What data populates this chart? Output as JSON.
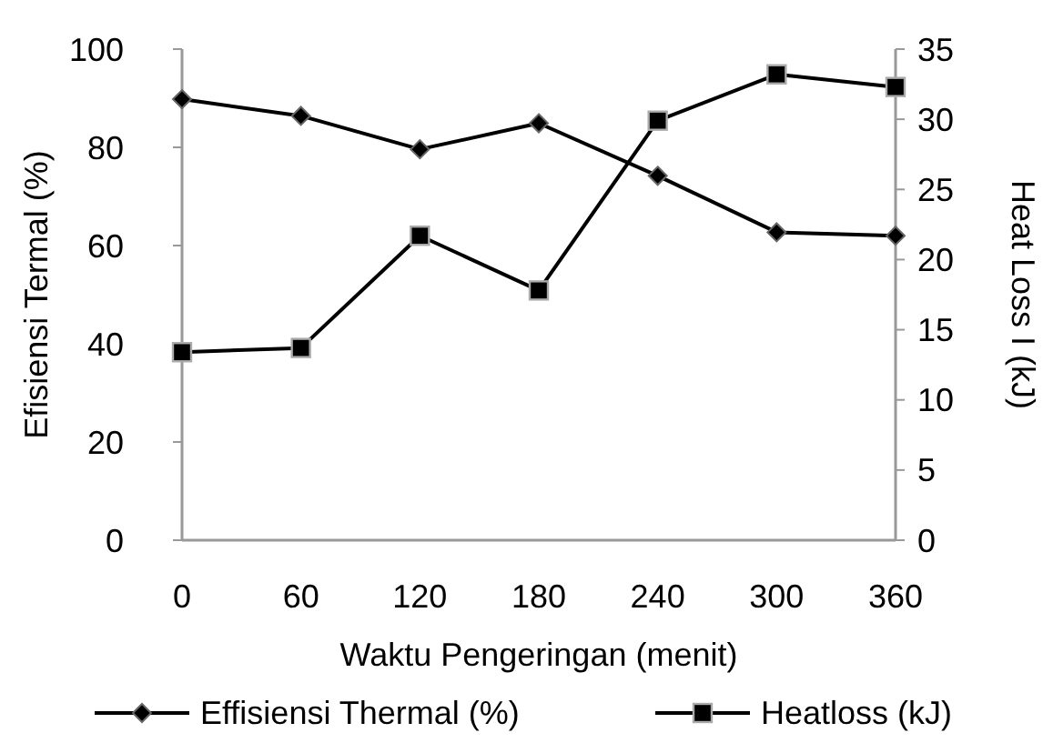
{
  "chart_data": {
    "type": "line",
    "xlabel": "Waktu Pengeringan (menit)",
    "ylabel": "Efisiensi Termal (%)",
    "y2label": "Heat Loss I (kJ)",
    "categories": [
      "0",
      "60",
      "120",
      "180",
      "240",
      "300",
      "360"
    ],
    "series": [
      {
        "name": "Effisiensi Thermal (%)",
        "color": "#000000",
        "marker": "diamond",
        "values": [
          89.8,
          86.4,
          79.6,
          84.9,
          74.2,
          62.7,
          62.0
        ]
      },
      {
        "name": "Heatloss (kJ)",
        "color": "#000000",
        "marker": "square",
        "axis": "y2",
        "values": [
          13.4,
          13.7,
          21.7,
          17.8,
          29.9,
          33.2,
          32.3
        ]
      }
    ],
    "ylim": [
      0,
      100
    ],
    "yticks": [
      0,
      20,
      40,
      60,
      80,
      100
    ],
    "y2lim": [
      0,
      35
    ],
    "y2ticks": [
      0,
      5,
      10,
      15,
      20,
      25,
      30,
      35
    ],
    "grid": false,
    "legend": "bottom",
    "line_style": "solid"
  }
}
